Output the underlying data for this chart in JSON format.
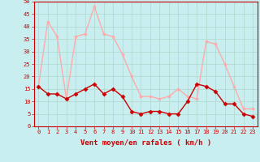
{
  "x": [
    0,
    1,
    2,
    3,
    4,
    5,
    6,
    7,
    8,
    9,
    10,
    11,
    12,
    13,
    14,
    15,
    16,
    17,
    18,
    19,
    20,
    21,
    22,
    23
  ],
  "y_gust": [
    16,
    42,
    36,
    11,
    36,
    37,
    48,
    37,
    36,
    29,
    20,
    12,
    12,
    11,
    12,
    15,
    12,
    11,
    34,
    33,
    25,
    16,
    7,
    7
  ],
  "y_mean": [
    16,
    13,
    13,
    11,
    13,
    15,
    17,
    13,
    15,
    12,
    6,
    5,
    6,
    6,
    5,
    5,
    10,
    17,
    16,
    14,
    9,
    9,
    5,
    4
  ],
  "bg_color": "#c8eef0",
  "grid_color": "#b0d8cc",
  "gust_color": "#ffaaaa",
  "mean_color": "#cc0000",
  "text_color": "#cc0000",
  "spine_color": "#cc0000",
  "ylim_min": 0,
  "ylim_max": 50,
  "ytick_step": 5,
  "xlabel": "Vent moyen/en rafales ( km/h )",
  "xlabel_fontsize": 6.5,
  "tick_fontsize": 5,
  "linewidth": 1.0,
  "marker_size_gust": 3.0,
  "marker_size_mean": 2.5
}
